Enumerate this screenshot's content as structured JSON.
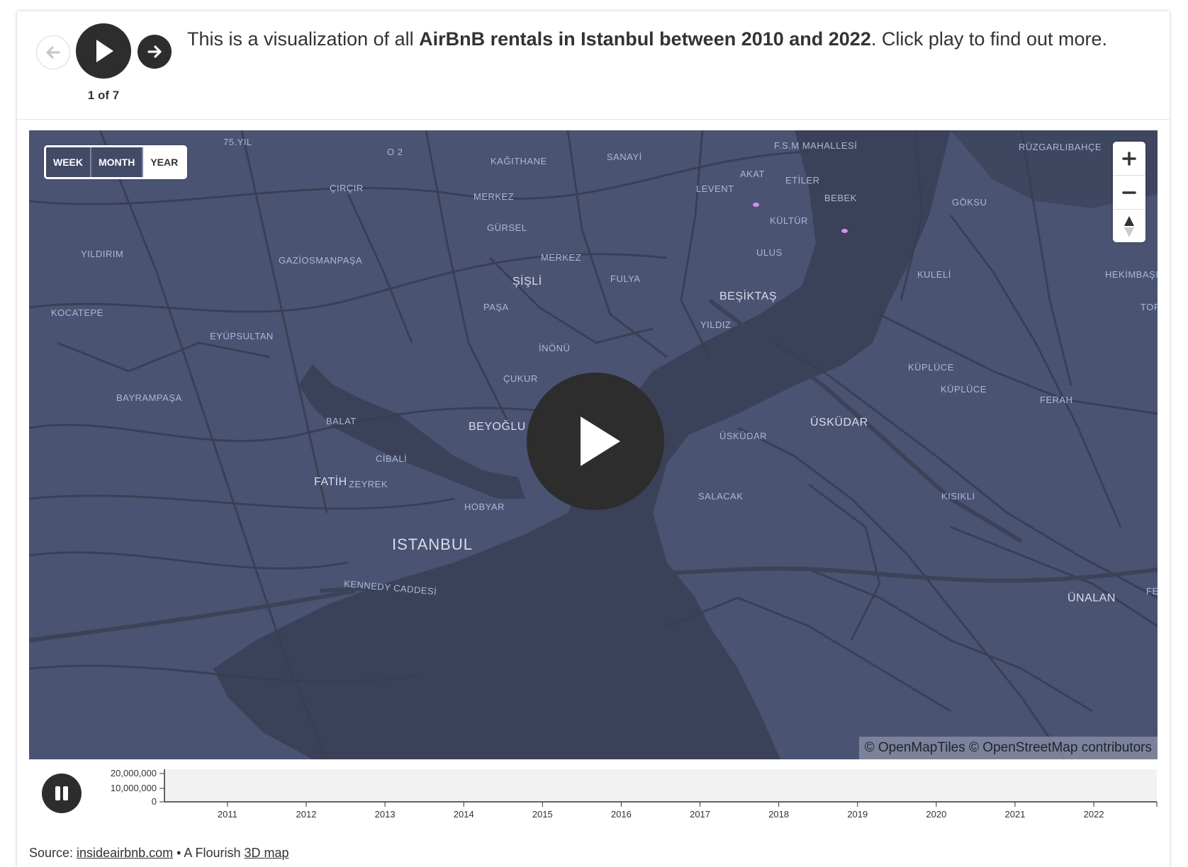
{
  "header": {
    "caption_pre": "This is a visualization of all ",
    "caption_bold": "AirBnB rentals in Istanbul between 2010 and 2022",
    "caption_post": ". Click play to find out more.",
    "counter": "1 of 7",
    "icons": {
      "back": "arrow-left-icon",
      "play": "play-icon",
      "next": "arrow-right-icon"
    }
  },
  "map": {
    "toggle": {
      "week": "WEEK",
      "month": "MONTH",
      "year": "YEAR",
      "active": "YEAR"
    },
    "attribution": "© OpenMapTiles © OpenStreetMap contributors",
    "zoom_icons": [
      "plus-icon",
      "minus-icon",
      "compass-icon"
    ],
    "labels": [
      {
        "text": "75.YIL"
      },
      {
        "text": "O 2"
      },
      {
        "text": "KAĞITHANE"
      },
      {
        "text": "SANAYİ"
      },
      {
        "text": "F.S.M MAHALLESİ"
      },
      {
        "text": "RÜZGARLIBAHÇE"
      },
      {
        "text": "ÇIRÇIR"
      },
      {
        "text": "MERKEZ"
      },
      {
        "text": "AKAT"
      },
      {
        "text": "ETİLER"
      },
      {
        "text": "LEVENT"
      },
      {
        "text": "BEBEK"
      },
      {
        "text": "GÖKSU"
      },
      {
        "text": "GÜRSEL"
      },
      {
        "text": "KÜLTÜR"
      },
      {
        "text": "YILDIRIM"
      },
      {
        "text": "GAZİOSMANPAŞA"
      },
      {
        "text": "MERKEZ"
      },
      {
        "text": "ULUS"
      },
      {
        "text": "ŞİŞLİ"
      },
      {
        "text": "FULYA"
      },
      {
        "text": "KULELİ"
      },
      {
        "text": "HEKİMBAŞI"
      },
      {
        "text": "BEŞİKTAŞ"
      },
      {
        "text": "KOCATEPE"
      },
      {
        "text": "PAŞA"
      },
      {
        "text": "TOPA"
      },
      {
        "text": "YILDIZ"
      },
      {
        "text": "EYÜPSULTAN"
      },
      {
        "text": "İNÖNÜ"
      },
      {
        "text": "KÜPLÜCE"
      },
      {
        "text": "ÇUKUR"
      },
      {
        "text": "KÜPLÜCE"
      },
      {
        "text": "BAYRAMPAŞA"
      },
      {
        "text": "FERAH"
      },
      {
        "text": "BALAT"
      },
      {
        "text": "BEYOĞLU"
      },
      {
        "text": "ÜSKÜDAR"
      },
      {
        "text": "ÜSKÜDAR"
      },
      {
        "text": "CİBALİ"
      },
      {
        "text": "FATİH"
      },
      {
        "text": "ZEYREK"
      },
      {
        "text": "SALACAK"
      },
      {
        "text": "KISIKLI"
      },
      {
        "text": "HOBYAR"
      },
      {
        "text": "ISTANBUL"
      },
      {
        "text": "KENNEDY CADDESİ"
      },
      {
        "text": "ÜNALAN"
      },
      {
        "text": "FE"
      }
    ]
  },
  "timeline": {
    "y_ticks": [
      "20,000,000",
      "10,000,000",
      "0"
    ],
    "x_ticks": [
      "2011",
      "2012",
      "2013",
      "2014",
      "2015",
      "2016",
      "2017",
      "2018",
      "2019",
      "2020",
      "2021",
      "2022"
    ],
    "pause_icon": "pause-icon"
  },
  "footer": {
    "source_label": "Source: ",
    "source_link": "insideairbnb.com",
    "sep": " • A Flourish ",
    "map_link": "3D map"
  }
}
